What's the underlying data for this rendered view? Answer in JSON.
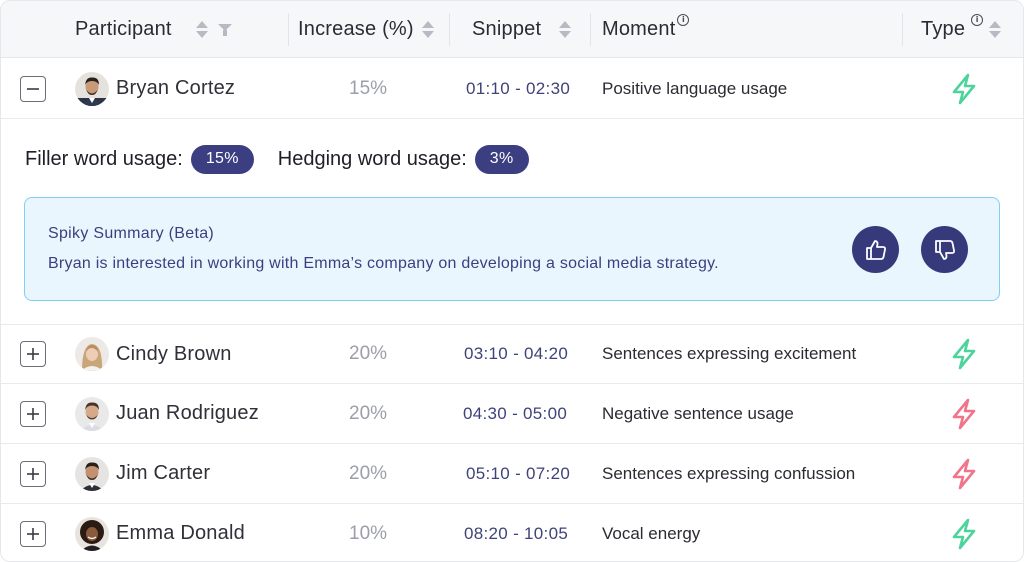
{
  "columns": {
    "participant": "Participant",
    "increase": "Increase (%)",
    "snippet": "Snippet",
    "moment": "Moment",
    "type": "Type"
  },
  "icons": {
    "sort": "sort-arrows-icon",
    "filter": "filter-icon",
    "info": "info-icon",
    "expand": "plus-icon",
    "collapse": "minus-icon",
    "type": "lightning-bolt-icon",
    "like": "thumbs-up-icon",
    "dislike": "thumbs-down-icon"
  },
  "colors": {
    "positive": "#4fd39c",
    "negative": "#f0748a",
    "accent": "#3b3f81",
    "summary_bg": "#eaf6fd",
    "summary_border": "#7fd0f2"
  },
  "info_glyph": "i",
  "expanded": {
    "filler_label": "Filler word usage:",
    "filler_value": "15%",
    "hedging_label": "Hedging word usage:",
    "hedging_value": "3%",
    "summary_title": "Spiky Summary (Beta)",
    "summary_text": "Bryan is interested in working with Emma’s company on developing a social media strategy."
  },
  "rows": [
    {
      "name": "Bryan Cortez",
      "increase": "15%",
      "snippet": "01:10 - 02:30",
      "moment": "Positive language usage",
      "type": "positive",
      "expanded": true
    },
    {
      "name": "Cindy Brown",
      "increase": "20%",
      "snippet": "03:10 - 04:20",
      "moment": "Sentences expressing excitement",
      "type": "positive",
      "expanded": false
    },
    {
      "name": "Juan Rodriguez",
      "increase": "20%",
      "snippet": "04:30 - 05:00",
      "moment": "Negative sentence usage",
      "type": "negative",
      "expanded": false
    },
    {
      "name": "Jim Carter",
      "increase": "20%",
      "snippet": "05:10 - 07:20",
      "moment": "Sentences expressing confussion",
      "type": "negative",
      "expanded": false
    },
    {
      "name": "Emma Donald",
      "increase": "10%",
      "snippet": "08:20 - 10:05",
      "moment": "Vocal energy",
      "type": "positive",
      "expanded": false
    }
  ]
}
